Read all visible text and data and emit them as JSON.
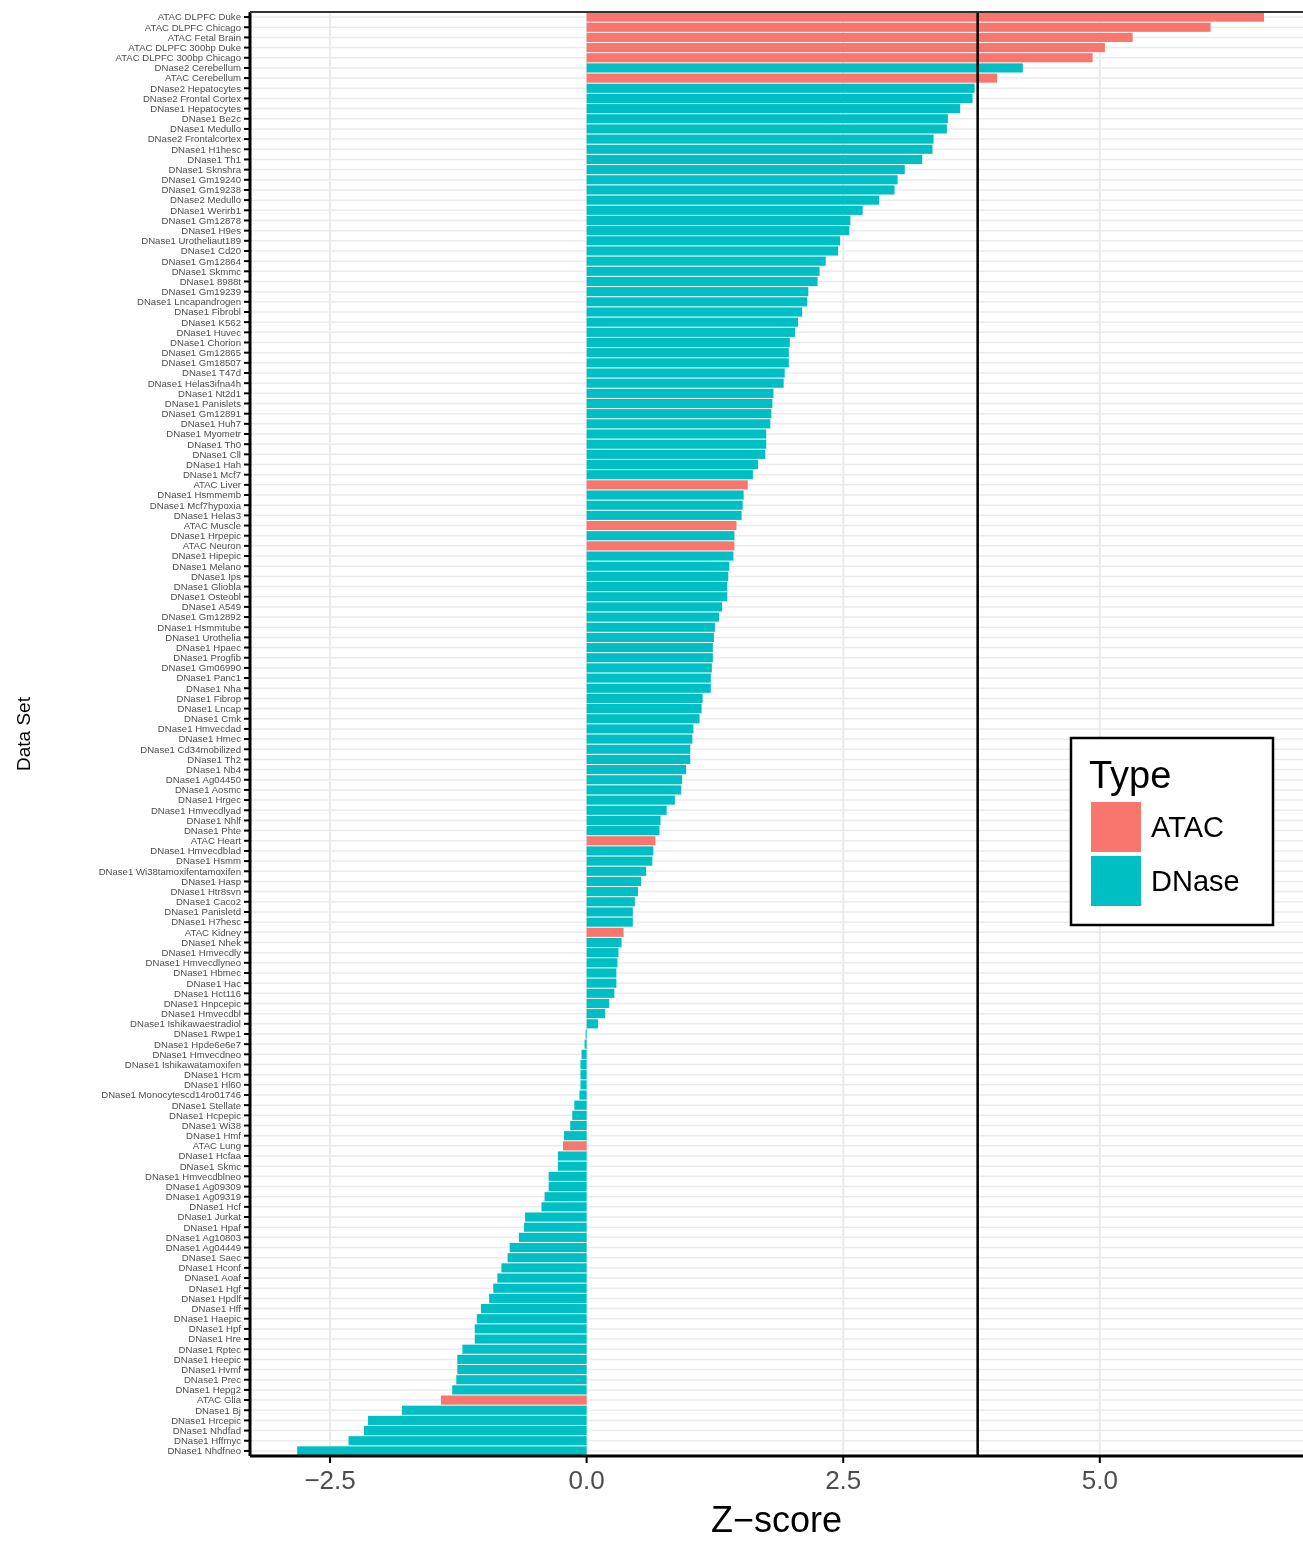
{
  "chart_data": {
    "type": "bar",
    "orientation": "horizontal",
    "stacked": true,
    "xlabel": "Z−score",
    "ylabel": "Data Set",
    "legend_title": "Type",
    "legend": "right",
    "grid": true,
    "xlim": [
      -3.28,
      6.98
    ],
    "xticks": [
      {
        "value": -2.5,
        "label": "−2.5"
      },
      {
        "value": 0,
        "label": "0.0"
      },
      {
        "value": 2.5,
        "label": "2.5"
      },
      {
        "value": 5,
        "label": "5.0"
      }
    ],
    "ref_lines": [
      {
        "axis": "x",
        "value": 3.81,
        "color": "#000000"
      }
    ],
    "categories": [
      "ATAC DLPFC Duke",
      "ATAC DLPFC Chicago",
      "ATAC Fetal Brain",
      "ATAC DLPFC 300bp Duke",
      "ATAC DLPFC 300bp Chicago",
      "DNase2 Cerebellum",
      "ATAC Cerebellum",
      "DNase2 Hepatocytes",
      "DNase2 Frontal Cortex",
      "DNase1 Hepatocytes",
      "DNase1 Be2c",
      "DNase1 Medullo",
      "DNase2 Frontalcortex",
      "DNase1 H1hesc",
      "DNase1 Th1",
      "DNase1 Sknshra",
      "DNase1 Gm19240",
      "DNase1 Gm19238",
      "DNase2 Medullo",
      "DNase1 Werirb1",
      "DNase1 Gm12878",
      "DNase1 H9es",
      "DNase1 Urotheliaut189",
      "DNase1 Cd20",
      "DNase1 Gm12864",
      "DNase1 Skmmc",
      "DNase1 8988t",
      "DNase1 Gm19239",
      "DNase1 Lncapandrogen",
      "DNase1 Fibrobl",
      "DNase1 K562",
      "DNase1 Huvec",
      "DNase1 Chorion",
      "DNase1 Gm12865",
      "DNase1 Gm18507",
      "DNase1 T47d",
      "DNase1 Helas3ifna4h",
      "DNase1 Nt2d1",
      "DNase1 Panislets",
      "DNase1 Gm12891",
      "DNase1 Huh7",
      "DNase1 Myometr",
      "DNase1 Th0",
      "DNase1 Cll",
      "DNase1 Hah",
      "DNase1 Mcf7",
      "ATAC Liver",
      "DNase1 Hsmmemb",
      "DNase1 Mcf7hypoxia",
      "DNase1 Helas3",
      "ATAC Muscle",
      "DNase1 Hrpepic",
      "ATAC Neuron",
      "DNase1 Hipepic",
      "DNase1 Melano",
      "DNase1 Ips",
      "DNase1 Gliobla",
      "DNase1 Osteobl",
      "DNase1 A549",
      "DNase1 Gm12892",
      "DNase1 Hsmmtube",
      "DNase1 Urothelia",
      "DNase1 Hpaec",
      "DNase1 Progfib",
      "DNase1 Gm06990",
      "DNase1 Panc1",
      "DNase1 Nha",
      "DNase1 Fibrop",
      "DNase1 Lncap",
      "DNase1 Cmk",
      "DNase1 Hmvecdad",
      "DNase1 Hmec",
      "DNase1 Cd34mobilized",
      "DNase1 Th2",
      "DNase1 Nb4",
      "DNase1 Ag04450",
      "DNase1 Aosmc",
      "DNase1 Hrgec",
      "DNase1 Hmvecdlyad",
      "DNase1 Nhlf",
      "DNase1 Phte",
      "ATAC Heart",
      "DNase1 Hmvecdblad",
      "DNase1 Hsmm",
      "DNase1 Wi38tamoxifentamoxifen",
      "DNase1 Hasp",
      "DNase1 Htr8svn",
      "DNase1 Caco2",
      "DNase1 Panisletd",
      "DNase1 H7hesc",
      "ATAC Kidney",
      "DNase1 Nhek",
      "DNase1 Hmvecdly",
      "DNase1 Hmvecdlyneo",
      "DNase1 Hbmec",
      "DNase1 Hac",
      "DNase1 Hct116",
      "DNase1 Hnpcepic",
      "DNase1 Hmvecdbl",
      "DNase1 Ishikawaestradiol",
      "DNase1 Rwpe1",
      "DNase1 Hpde6e6e7",
      "DNase1 Hmvecdneo",
      "DNase1 Ishikawatamoxifen",
      "DNase1 Hcm",
      "DNase1 Hl60",
      "DNase1 Monocytescd14ro01746",
      "DNase1 Stellate",
      "DNase1 Hcpepic",
      "DNase1 Wi38",
      "DNase1 Hmf",
      "ATAC Lung",
      "DNase1 Hcfaa",
      "DNase1 Skmc",
      "DNase1 Hmvecdblneo",
      "DNase1 Ag09309",
      "DNase1 Ag09319",
      "DNase1 Hcf",
      "DNase1 Jurkat",
      "DNase1 Hpaf",
      "DNase1 Ag10803",
      "DNase1 Ag04449",
      "DNase1 Saec",
      "DNase1 Hconf",
      "DNase1 Aoaf",
      "DNase1 Hgf",
      "DNase1 Hpdlf",
      "DNase1 Hff",
      "DNase1 Haepic",
      "DNase1 Hpf",
      "DNase1 Hre",
      "DNase1 Rptec",
      "DNase1 Heepic",
      "DNase1 Hvmf",
      "DNase1 Prec",
      "DNase1 Hepg2",
      "ATAC Glia",
      "DNase1 Bj",
      "DNase1 Hrcepic",
      "DNase1 Nhdfad",
      "DNase1 Hffmyc",
      "DNase1 Nhdfneo"
    ],
    "series": [
      {
        "name": "ATAC",
        "color": "#f8766d",
        "values": [
          6.6,
          6.08,
          5.32,
          5.05,
          4.93,
          null,
          4.0,
          null,
          null,
          null,
          null,
          null,
          null,
          null,
          null,
          null,
          null,
          null,
          null,
          null,
          null,
          null,
          null,
          null,
          null,
          null,
          null,
          null,
          null,
          null,
          null,
          null,
          null,
          null,
          null,
          null,
          null,
          null,
          null,
          null,
          null,
          null,
          null,
          null,
          null,
          null,
          1.57,
          null,
          null,
          null,
          1.46,
          null,
          1.44,
          null,
          null,
          null,
          null,
          null,
          null,
          null,
          null,
          null,
          null,
          null,
          null,
          null,
          null,
          null,
          null,
          null,
          null,
          null,
          null,
          null,
          null,
          null,
          null,
          null,
          null,
          null,
          null,
          0.67,
          null,
          null,
          null,
          null,
          null,
          null,
          null,
          null,
          0.36,
          null,
          null,
          null,
          null,
          null,
          null,
          null,
          null,
          null,
          null,
          null,
          null,
          null,
          null,
          null,
          null,
          null,
          null,
          null,
          null,
          -0.23,
          null,
          null,
          null,
          null,
          null,
          null,
          null,
          null,
          null,
          null,
          null,
          null,
          null,
          null,
          null,
          null,
          null,
          null,
          null,
          null,
          null,
          null,
          null,
          null,
          -1.42,
          null,
          null,
          null,
          null,
          null
        ]
      },
      {
        "name": "DNase",
        "color": "#00bfc4",
        "values": [
          null,
          null,
          null,
          null,
          null,
          4.25,
          null,
          3.78,
          3.76,
          3.64,
          3.52,
          3.51,
          3.38,
          3.37,
          3.27,
          3.1,
          3.03,
          3.0,
          2.85,
          2.69,
          2.57,
          2.56,
          2.47,
          2.45,
          2.33,
          2.27,
          2.25,
          2.16,
          2.15,
          2.1,
          2.06,
          2.03,
          1.98,
          1.97,
          1.97,
          1.93,
          1.92,
          1.82,
          1.81,
          1.8,
          1.79,
          1.75,
          1.75,
          1.74,
          1.67,
          1.62,
          null,
          1.53,
          1.52,
          1.51,
          null,
          1.44,
          null,
          1.43,
          1.39,
          1.38,
          1.37,
          1.37,
          1.32,
          1.29,
          1.25,
          1.24,
          1.23,
          1.23,
          1.22,
          1.21,
          1.21,
          1.13,
          1.12,
          1.1,
          1.04,
          1.03,
          1.01,
          1.01,
          0.97,
          0.93,
          0.92,
          0.86,
          0.78,
          0.72,
          0.71,
          null,
          0.65,
          0.64,
          0.58,
          0.53,
          0.5,
          0.47,
          0.45,
          0.45,
          null,
          0.34,
          0.31,
          0.3,
          0.29,
          0.29,
          0.27,
          0.22,
          0.18,
          0.11,
          -0.01,
          -0.02,
          -0.05,
          -0.06,
          -0.06,
          -0.06,
          -0.07,
          -0.12,
          -0.14,
          -0.16,
          -0.22,
          null,
          -0.28,
          -0.28,
          -0.37,
          -0.37,
          -0.41,
          -0.44,
          -0.6,
          -0.61,
          -0.66,
          -0.75,
          -0.77,
          -0.83,
          -0.87,
          -0.91,
          -0.95,
          -1.03,
          -1.07,
          -1.09,
          -1.09,
          -1.21,
          -1.26,
          -1.26,
          -1.27,
          -1.31,
          null,
          -1.8,
          -2.13,
          -2.17,
          -2.32,
          -2.82
        ]
      }
    ]
  }
}
